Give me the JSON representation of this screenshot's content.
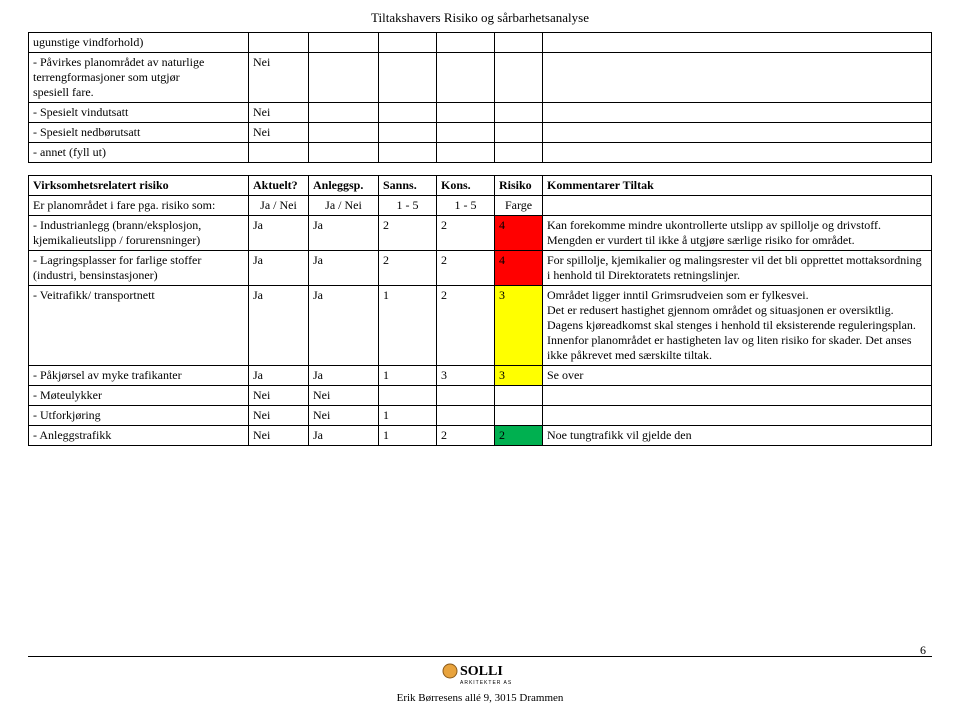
{
  "page": {
    "title": "Tiltakshavers Risiko og sårbarhetsanalyse",
    "number": "6"
  },
  "table1": {
    "rows": [
      {
        "label": "  ugunstige vindforhold)",
        "c2": "",
        "c3": "",
        "c4": "",
        "c5": "",
        "c6": "",
        "c7": ""
      },
      {
        "label": "- Påvirkes planområdet av naturlige\n  terrengformasjoner som utgjør\n  spesiell fare.",
        "c2": "Nei",
        "c3": "",
        "c4": "",
        "c5": "",
        "c6": "",
        "c7": ""
      },
      {
        "label": "- Spesielt vindutsatt",
        "c2": "Nei",
        "c3": "",
        "c4": "",
        "c5": "",
        "c6": "",
        "c7": ""
      },
      {
        "label": "- Spesielt nedbørutsatt",
        "c2": "Nei",
        "c3": "",
        "c4": "",
        "c5": "",
        "c6": "",
        "c7": ""
      },
      {
        "label": "- annet (fyll ut)",
        "c2": "",
        "c3": "",
        "c4": "",
        "c5": "",
        "c6": "",
        "c7": ""
      }
    ]
  },
  "table2": {
    "header": {
      "h1": "Virksomhetsrelatert risiko",
      "h2": "Aktuelt?",
      "h3": "Anleggsp.",
      "h4": "Sanns.",
      "h5": "Kons.",
      "h6": "Risiko",
      "h7": "Kommentarer Tiltak"
    },
    "subheader": {
      "s1": "Er planområdet i fare pga. risiko som:",
      "s2": "Ja / Nei",
      "s3": "Ja / Nei",
      "s4": "1 - 5",
      "s5": "1 - 5",
      "s6": "Farge",
      "s7": ""
    },
    "rows": [
      {
        "label": "- Industrianlegg (brann/eksplosjon,\n  kjemikalieutslipp / forurensninger)",
        "aktuelt": "Ja",
        "anleggsp": "Ja",
        "sanns": "2",
        "kons": "2",
        "risiko": "4",
        "risk_color": "#ff0000",
        "komment": "Kan forekomme mindre ukontrollerte utslipp av spillolje og drivstoff. Mengden er vurdert til ikke å utgjøre særlige risiko for området."
      },
      {
        "label": "- Lagringsplasser for farlige stoffer\n  (industri, bensinstasjoner)",
        "aktuelt": "Ja",
        "anleggsp": "Ja",
        "sanns": "2",
        "kons": "2",
        "risiko": "4",
        "risk_color": "#ff0000",
        "komment": "For spillolje, kjemikalier og malingsrester vil det bli opprettet mottaksordning i henhold til Direktoratets retningslinjer."
      },
      {
        "label": "- Veitrafikk/ transportnett",
        "aktuelt": "Ja",
        "anleggsp": "Ja",
        "sanns": "1",
        "kons": "2",
        "risiko": "3",
        "risk_color": "#ffff00",
        "komment": "Området ligger inntil Grimsrudveien som er fylkesvei.\nDet er redusert hastighet gjennom området og situasjonen er oversiktlig. Dagens kjøreadkomst skal stenges i henhold til eksisterende reguleringsplan. Innenfor planområdet er hastigheten lav og liten risiko for skader. Det anses ikke påkrevet med særskilte tiltak."
      },
      {
        "label": "- Påkjørsel av myke trafikanter",
        "aktuelt": "Ja",
        "anleggsp": "Ja",
        "sanns": "1",
        "kons": "3",
        "risiko": "3",
        "risk_color": "#ffff00",
        "komment": "Se over"
      },
      {
        "label": "- Møteulykker",
        "aktuelt": "Nei",
        "anleggsp": "Nei",
        "sanns": "",
        "kons": "",
        "risiko": "",
        "risk_color": "",
        "komment": ""
      },
      {
        "label": "- Utforkjøring",
        "aktuelt": "Nei",
        "anleggsp": "Nei",
        "sanns": "1",
        "kons": "",
        "risiko": "",
        "risk_color": "",
        "komment": ""
      },
      {
        "label": "- Anleggstrafikk",
        "aktuelt": "Nei",
        "anleggsp": "Ja",
        "sanns": "1",
        "kons": "2",
        "risiko": "2",
        "risk_color": "#00b050",
        "komment": "Noe tungtrafikk vil gjelde den"
      }
    ]
  },
  "footer": {
    "logo_text": "SOLLI",
    "logo_sub": "ARKITEKTER AS",
    "address": "Erik Børresens allé 9, 3015 Drammen"
  },
  "colors": {
    "risk_4": "#ff0000",
    "risk_3": "#ffff00",
    "risk_2": "#00b050",
    "border": "#000000",
    "text": "#000000",
    "bg": "#ffffff"
  }
}
